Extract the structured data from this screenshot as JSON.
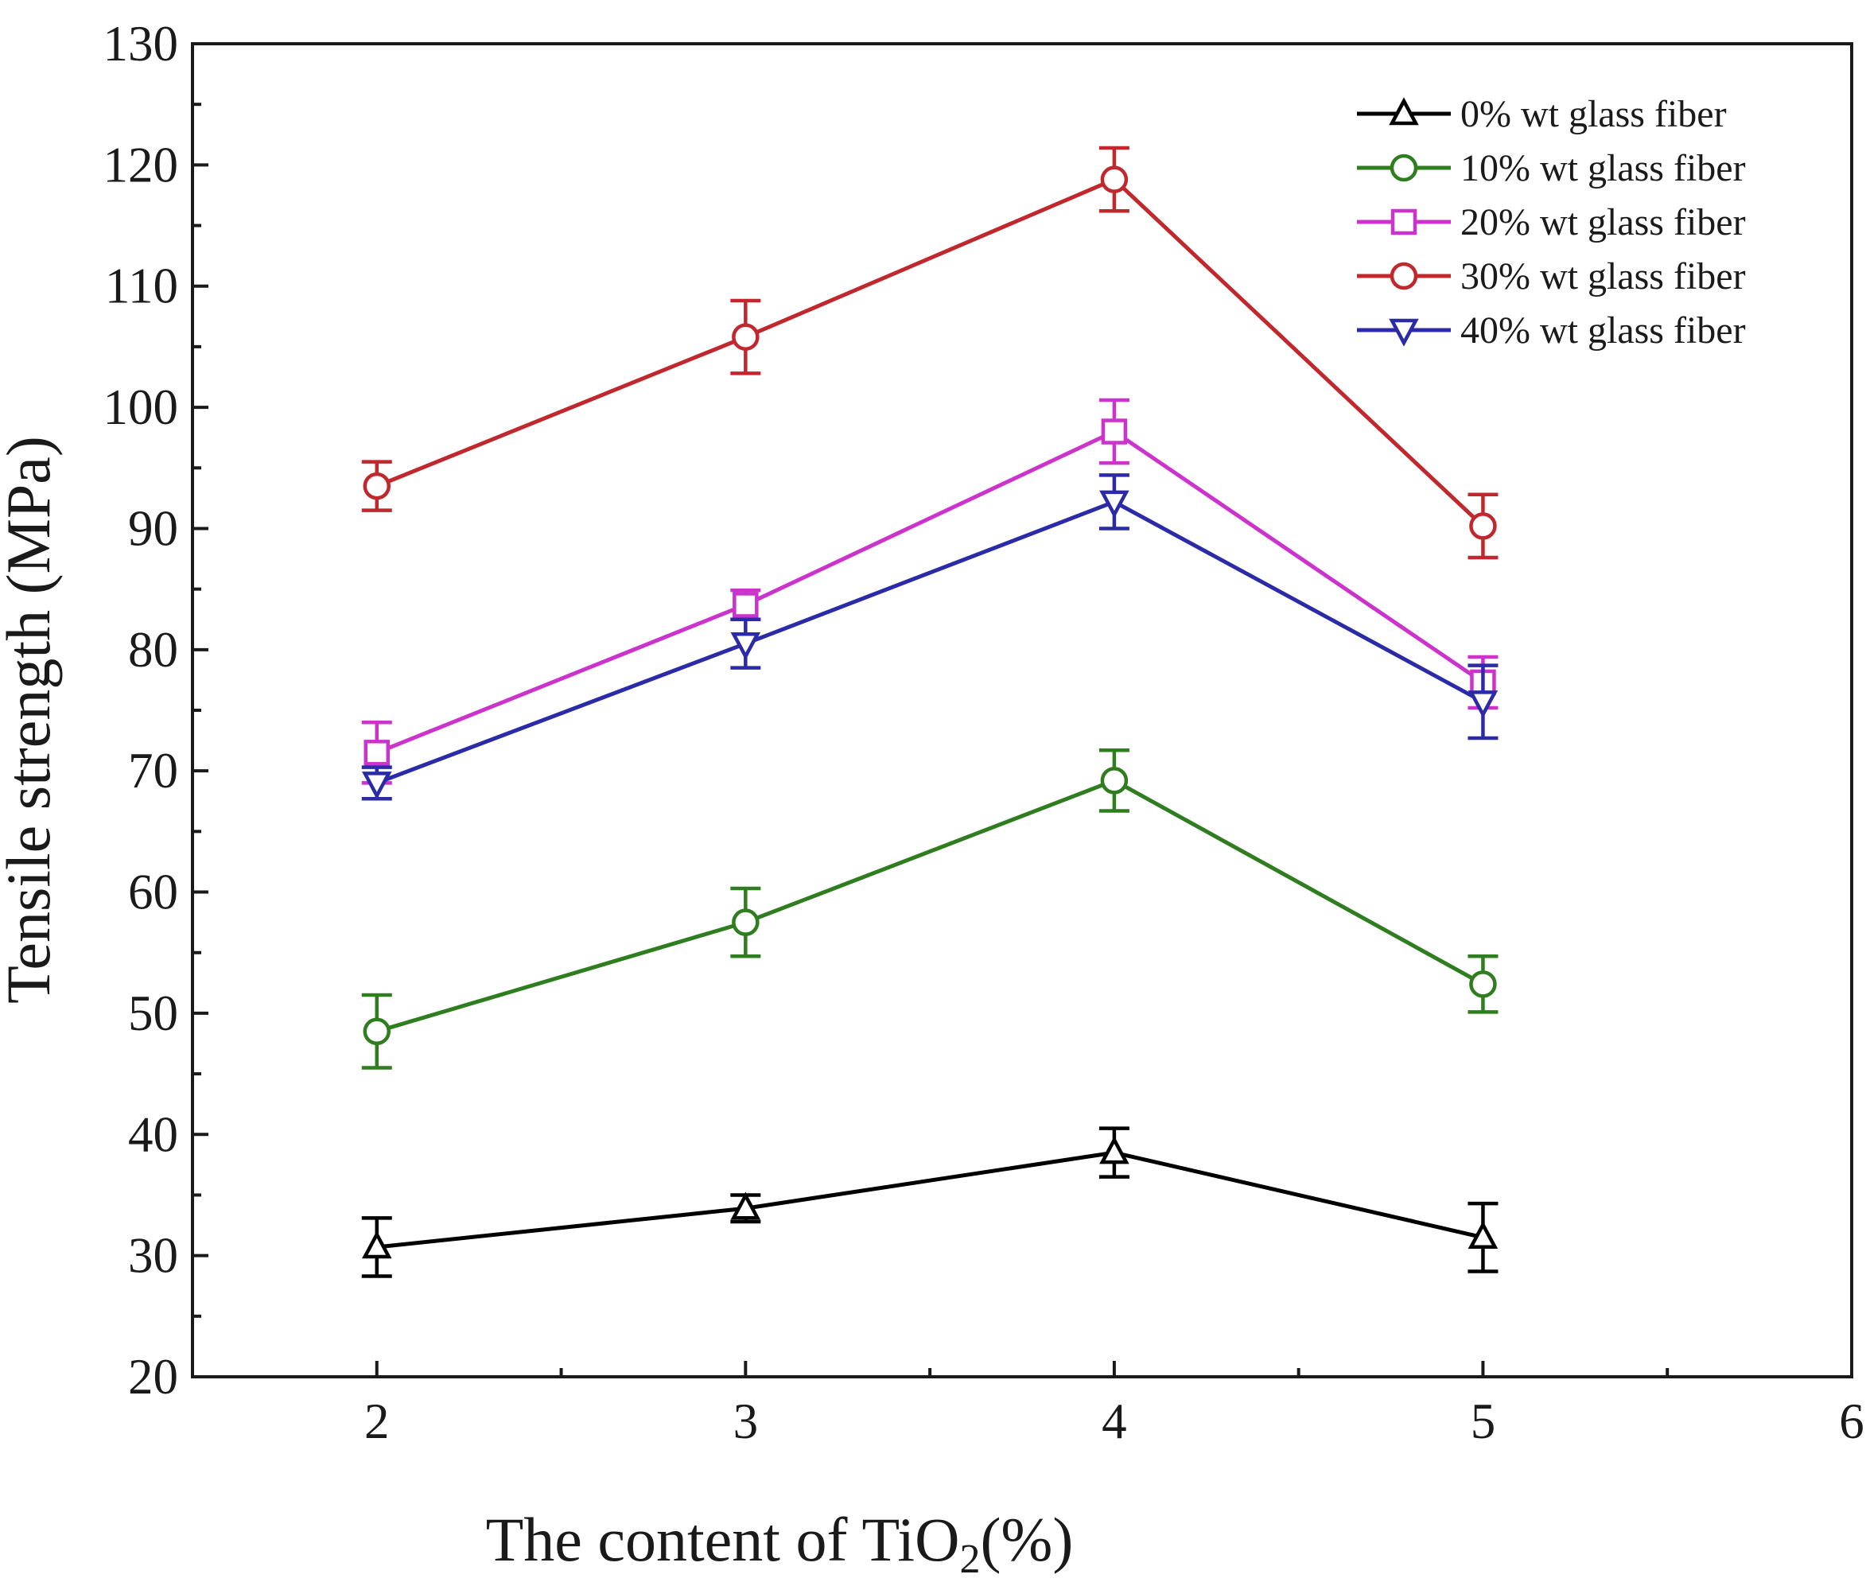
{
  "chart_data": {
    "type": "line",
    "xlabel": "The content of TiO₂(%)",
    "xlabel_parts": {
      "main": "The content of TiO",
      "sub": "2",
      "tail": "(%)"
    },
    "ylabel": "Tensile strength (MPa)",
    "xlim": [
      1.5,
      6
    ],
    "ylim": [
      20,
      130
    ],
    "xticks": [
      2,
      3,
      4,
      5,
      6
    ],
    "yticks": [
      20,
      30,
      40,
      50,
      60,
      70,
      80,
      90,
      100,
      110,
      120,
      130
    ],
    "grid": false,
    "legend_position": "top-right",
    "x": [
      2,
      3,
      4,
      5
    ],
    "series": [
      {
        "name": "0%  wt glass fiber",
        "color": "#000000",
        "marker": "triangle-up",
        "values": [
          30.7,
          33.9,
          38.5,
          31.5
        ],
        "errors": [
          2.4,
          1.1,
          2.0,
          2.8
        ]
      },
      {
        "name": "10% wt glass fiber",
        "color": "#2e7d1e",
        "marker": "circle",
        "values": [
          48.5,
          57.5,
          69.2,
          52.4
        ],
        "errors": [
          3.0,
          2.8,
          2.5,
          2.3
        ]
      },
      {
        "name": "20% wt glass fiber",
        "color": "#cc33cc",
        "marker": "square",
        "values": [
          71.5,
          83.7,
          98.0,
          77.3
        ],
        "errors": [
          2.5,
          1.2,
          2.6,
          2.1
        ]
      },
      {
        "name": "30% wt glass fiber",
        "color": "#c0282d",
        "marker": "circle",
        "values": [
          93.5,
          105.8,
          118.8,
          90.2
        ],
        "errors": [
          2.0,
          3.0,
          2.6,
          2.6
        ]
      },
      {
        "name": "40% wt glass fiber",
        "color": "#2b2ba8",
        "marker": "triangle-down",
        "values": [
          69.0,
          80.5,
          92.2,
          75.7
        ],
        "errors": [
          1.3,
          2.0,
          2.2,
          3.0
        ]
      }
    ]
  }
}
